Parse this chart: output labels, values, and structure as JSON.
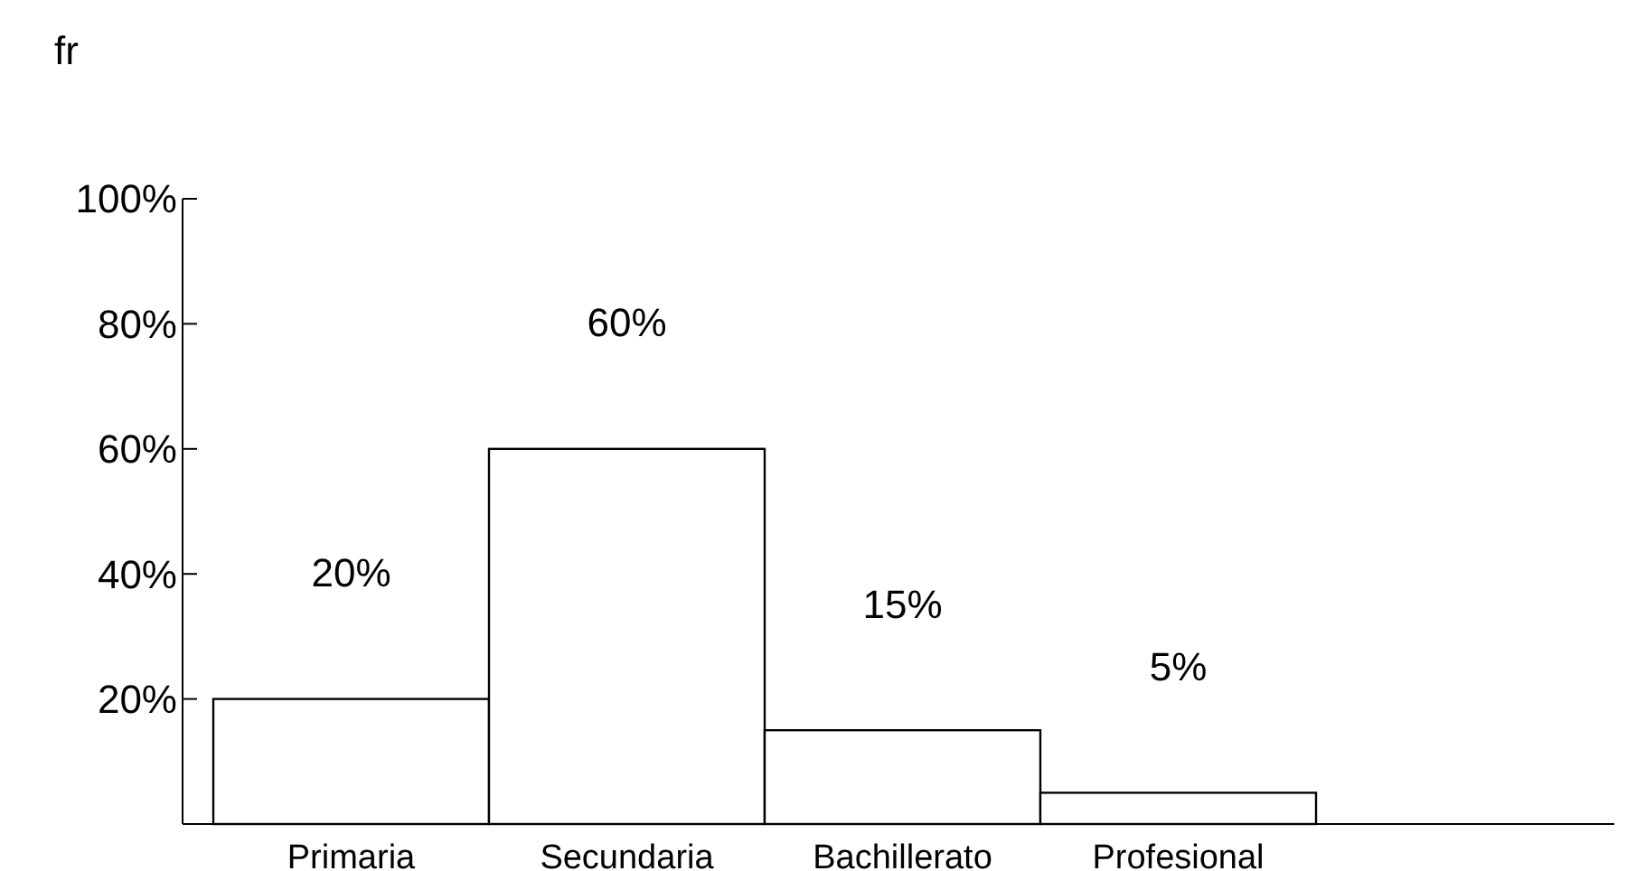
{
  "chart_data": {
    "type": "bar",
    "ylabel": "fr",
    "categories": [
      "Primaria",
      "Secundaria",
      "Bachillerato",
      "Profesional"
    ],
    "values": [
      20,
      60,
      15,
      5
    ],
    "color": "#ffffff",
    "data_labels": true,
    "value_labels": [
      "20%",
      "60%",
      "15%",
      "5%"
    ],
    "ylim": [
      0,
      100
    ],
    "yticks": [
      {
        "value": 20,
        "label": "20%"
      },
      {
        "value": 40,
        "label": "40%"
      },
      {
        "value": 60,
        "label": "60%"
      },
      {
        "value": 80,
        "label": "80%"
      },
      {
        "value": 100,
        "label": "100%"
      }
    ],
    "grid": false
  }
}
